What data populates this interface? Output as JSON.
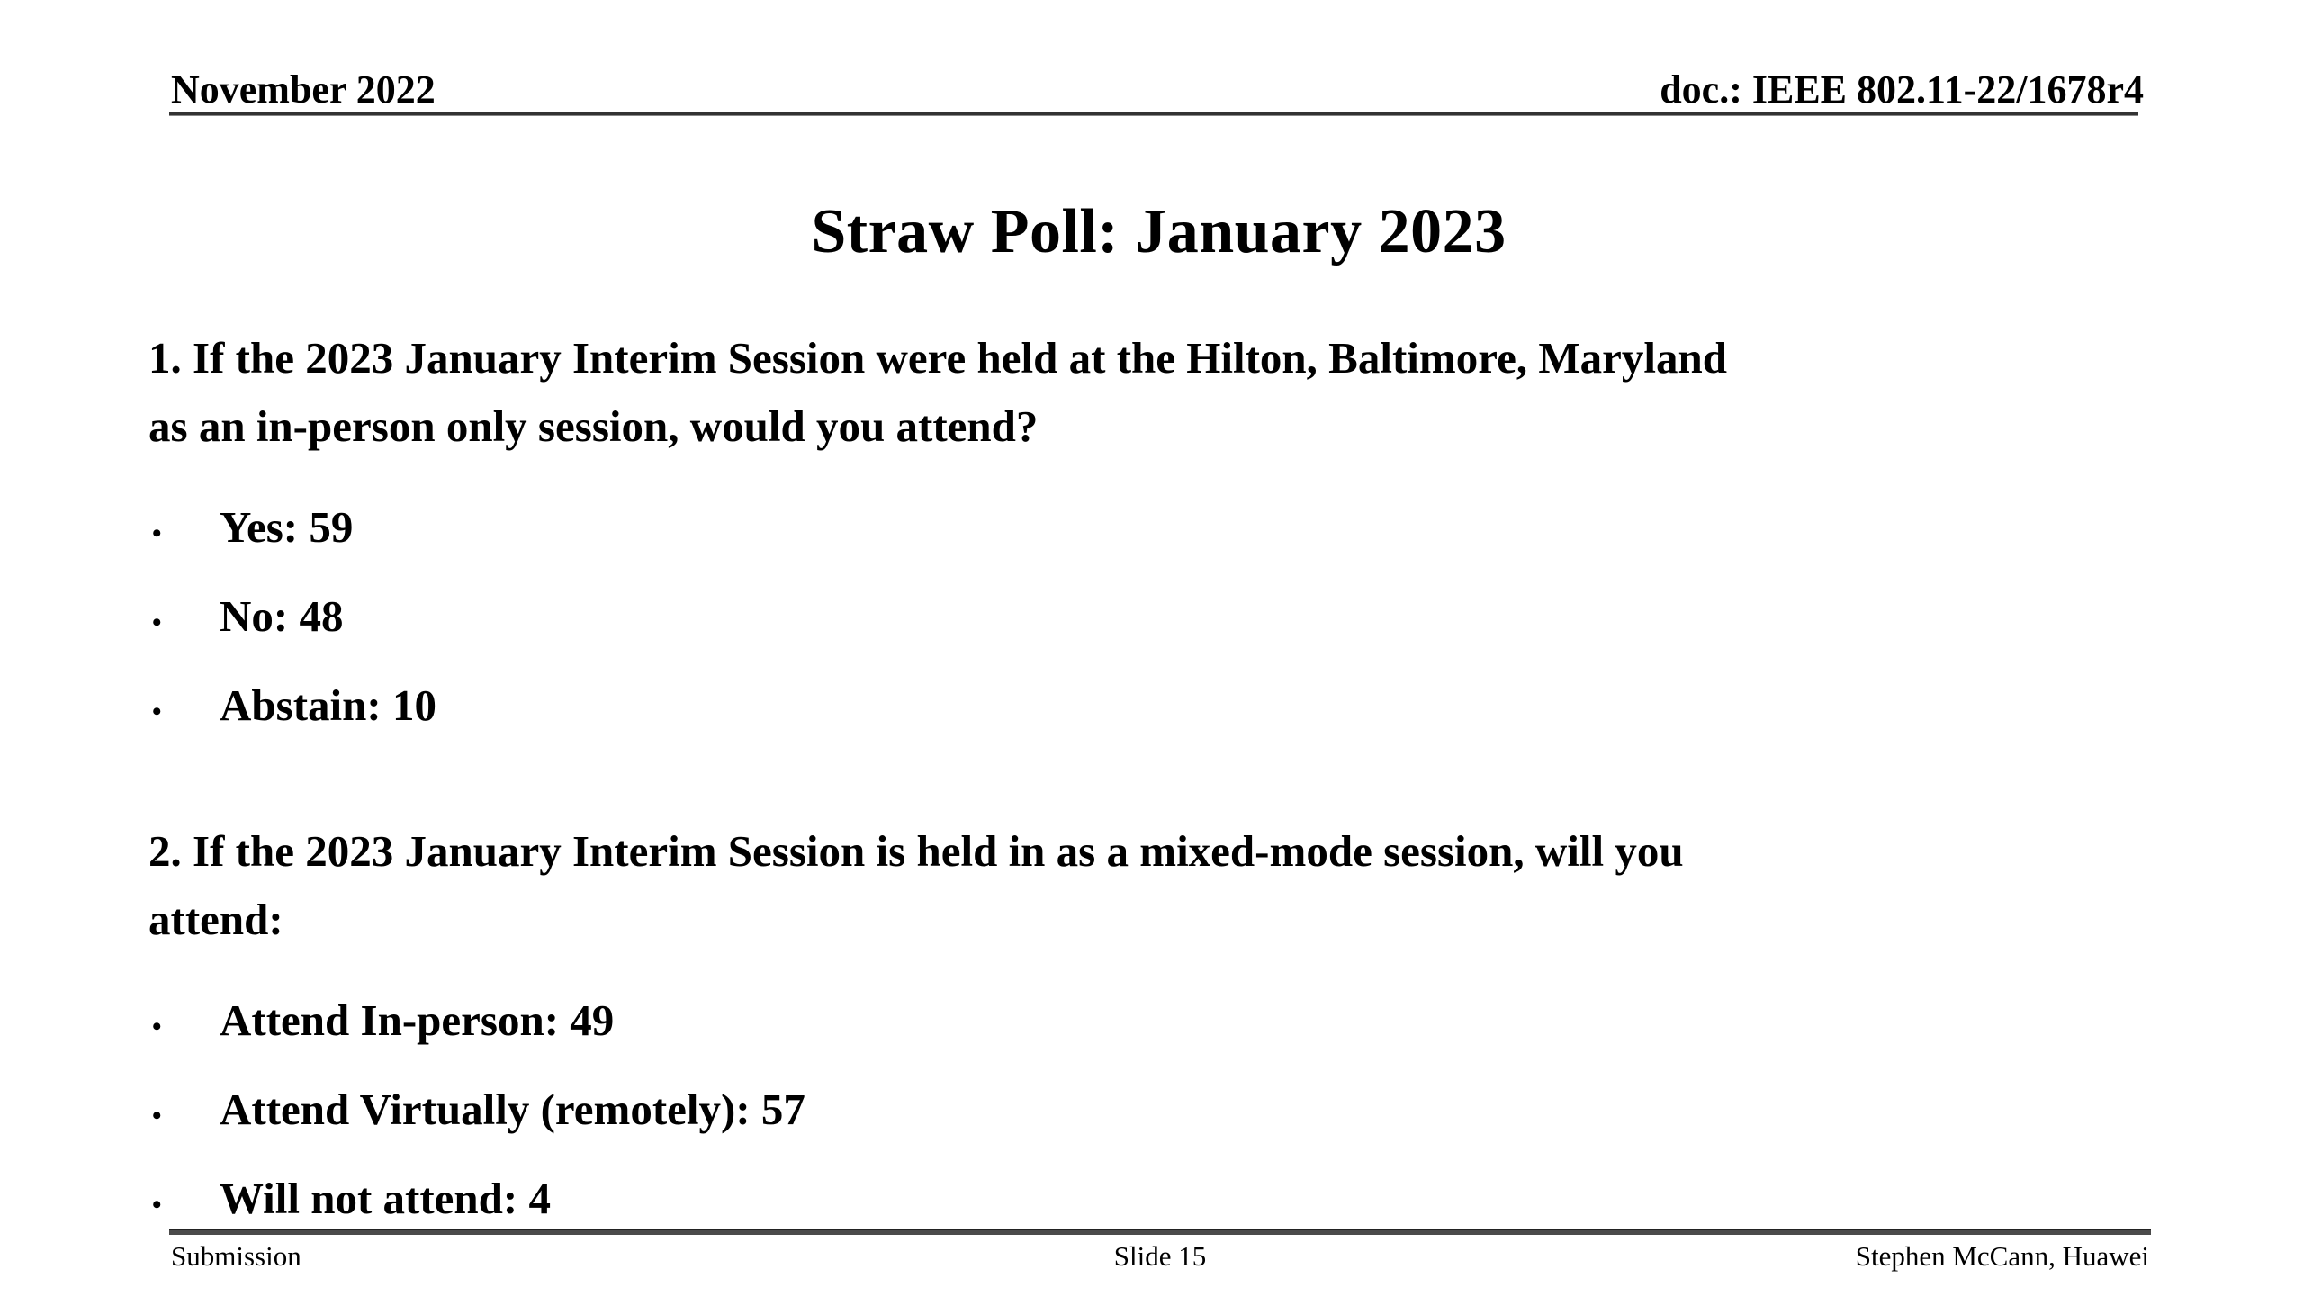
{
  "bullet_char": "•",
  "colors": {
    "background": "#ffffff",
    "text": "#000000",
    "rule": "#333333"
  },
  "header": {
    "date": "November 2022",
    "doc": "doc.: IEEE 802.11-22/1678r4"
  },
  "title": "Straw Poll: January 2023",
  "questions": [
    {
      "text": "1. If the 2023 January Interim Session were held at the Hilton, Baltimore, Maryland\nas an in-person only session, would you attend?",
      "bullets": [
        "Yes: 59",
        "No: 48",
        "Abstain: 10"
      ]
    },
    {
      "text": "2. If the 2023 January Interim Session is held in as a mixed-mode session, will you\nattend:",
      "bullets": [
        "Attend In-person: 49",
        "Attend Virtually (remotely): 57",
        "Will not attend: 4"
      ]
    }
  ],
  "footer": {
    "left": "Submission",
    "center": "Slide 15",
    "right": "Stephen McCann, Huawei"
  }
}
